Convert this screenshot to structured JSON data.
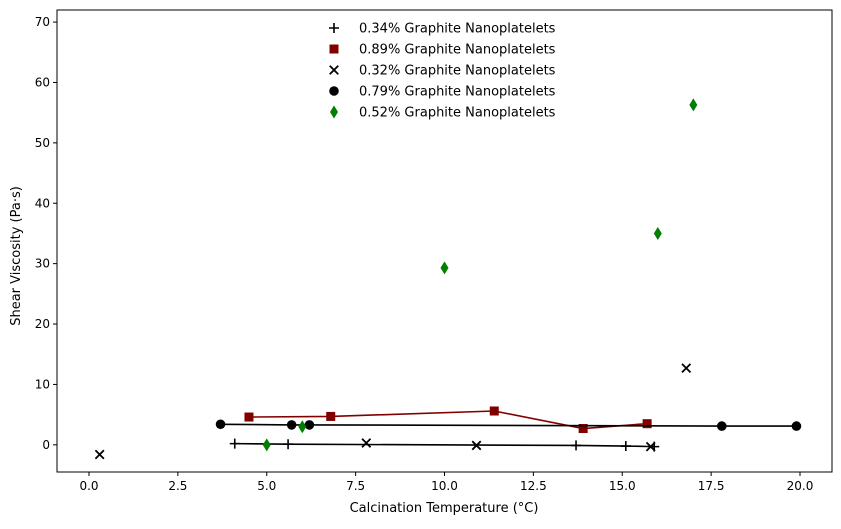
{
  "chart_data": {
    "type": "scatter",
    "title": "",
    "xlabel": "Calcination Temperature (°C)",
    "ylabel": "Shear Viscosity (Pa·s)",
    "xlim": [
      -0.9,
      20.9
    ],
    "ylim": [
      -4.5,
      72.0
    ],
    "xticks": [
      0.0,
      2.5,
      5.0,
      7.5,
      10.0,
      12.5,
      15.0,
      17.5,
      20.0
    ],
    "xtick_labels": [
      "0.0",
      "2.5",
      "5.0",
      "7.5",
      "10.0",
      "12.5",
      "15.0",
      "17.5",
      "20.0"
    ],
    "yticks": [
      0,
      10,
      20,
      30,
      40,
      50,
      60,
      70
    ],
    "ytick_labels": [
      "0",
      "10",
      "20",
      "30",
      "40",
      "50",
      "60",
      "70"
    ],
    "grid": false,
    "legend_position": "upper center",
    "series": [
      {
        "name": "0.34% Graphite Nanoplatelets",
        "marker": "plus",
        "color": "#000000",
        "line": true,
        "x": [
          4.1,
          5.6,
          13.7,
          15.1,
          15.9
        ],
        "y": [
          0.2,
          0.1,
          -0.1,
          -0.2,
          -0.3
        ]
      },
      {
        "name": "0.89% Graphite Nanoplatelets",
        "marker": "square",
        "color": "#800000",
        "line": true,
        "x": [
          4.5,
          6.8,
          11.4,
          13.9,
          15.7
        ],
        "y": [
          4.6,
          4.7,
          5.6,
          2.7,
          3.5
        ]
      },
      {
        "name": "0.32% Graphite Nanoplatelets",
        "marker": "x",
        "color": "#000000",
        "line": false,
        "x": [
          0.3,
          7.8,
          10.9,
          15.8,
          16.8
        ],
        "y": [
          -1.6,
          0.3,
          -0.1,
          -0.3,
          12.7
        ]
      },
      {
        "name": "0.79% Graphite Nanoplatelets",
        "marker": "circle",
        "color": "#000000",
        "line": true,
        "x": [
          3.7,
          5.7,
          6.2,
          17.8,
          19.9
        ],
        "y": [
          3.4,
          3.3,
          3.3,
          3.1,
          3.1
        ]
      },
      {
        "name": "0.52% Graphite Nanoplatelets",
        "marker": "diamond",
        "color": "#007f00",
        "line": false,
        "x": [
          5.0,
          6.0,
          10.0,
          16.0,
          17.0
        ],
        "y": [
          0.0,
          3.0,
          29.3,
          35.0,
          56.3
        ]
      }
    ]
  }
}
